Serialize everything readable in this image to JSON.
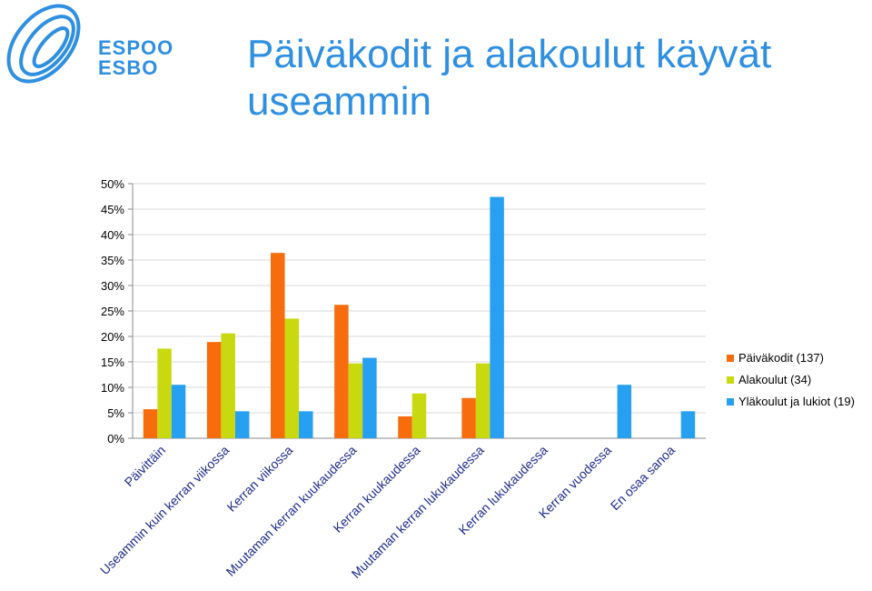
{
  "brand": {
    "name_fi": "ESPOO",
    "name_sv": "ESBO",
    "color": "#2f8fe0"
  },
  "title": "Päiväkodit ja alakoulut käyvät useammin",
  "chart_data": {
    "type": "bar",
    "categories": [
      "Päivittäin",
      "Useammin kuin kerran viikossa",
      "Kerran viikossa",
      "Muutaman kerran kuukaudessa",
      "Kerran kuukaudessa",
      "Muutaman kerran lukukaudessa",
      "Kerran lukukaudessa",
      "Kerran vuodessa",
      "En osaa sanoa"
    ],
    "series": [
      {
        "name": "Päiväkodit (137)",
        "color": "#f76c0c",
        "values": [
          5.7,
          18.9,
          36.4,
          26.2,
          4.3,
          7.9,
          0,
          0,
          0
        ]
      },
      {
        "name": "Alakoulut (34)",
        "color": "#c8d910",
        "values": [
          17.6,
          20.6,
          23.5,
          14.7,
          8.8,
          14.7,
          0,
          0,
          0
        ]
      },
      {
        "name": "Yläkoulut ja lukiot (19)",
        "color": "#27a0f2",
        "values": [
          10.5,
          5.3,
          5.3,
          15.8,
          0,
          47.4,
          0,
          10.5,
          5.3
        ]
      }
    ],
    "yticks": [
      "0%",
      "5%",
      "10%",
      "15%",
      "20%",
      "25%",
      "30%",
      "35%",
      "40%",
      "45%",
      "50%"
    ],
    "ylim": [
      0,
      50
    ],
    "grid": true,
    "legend_position": "right"
  }
}
